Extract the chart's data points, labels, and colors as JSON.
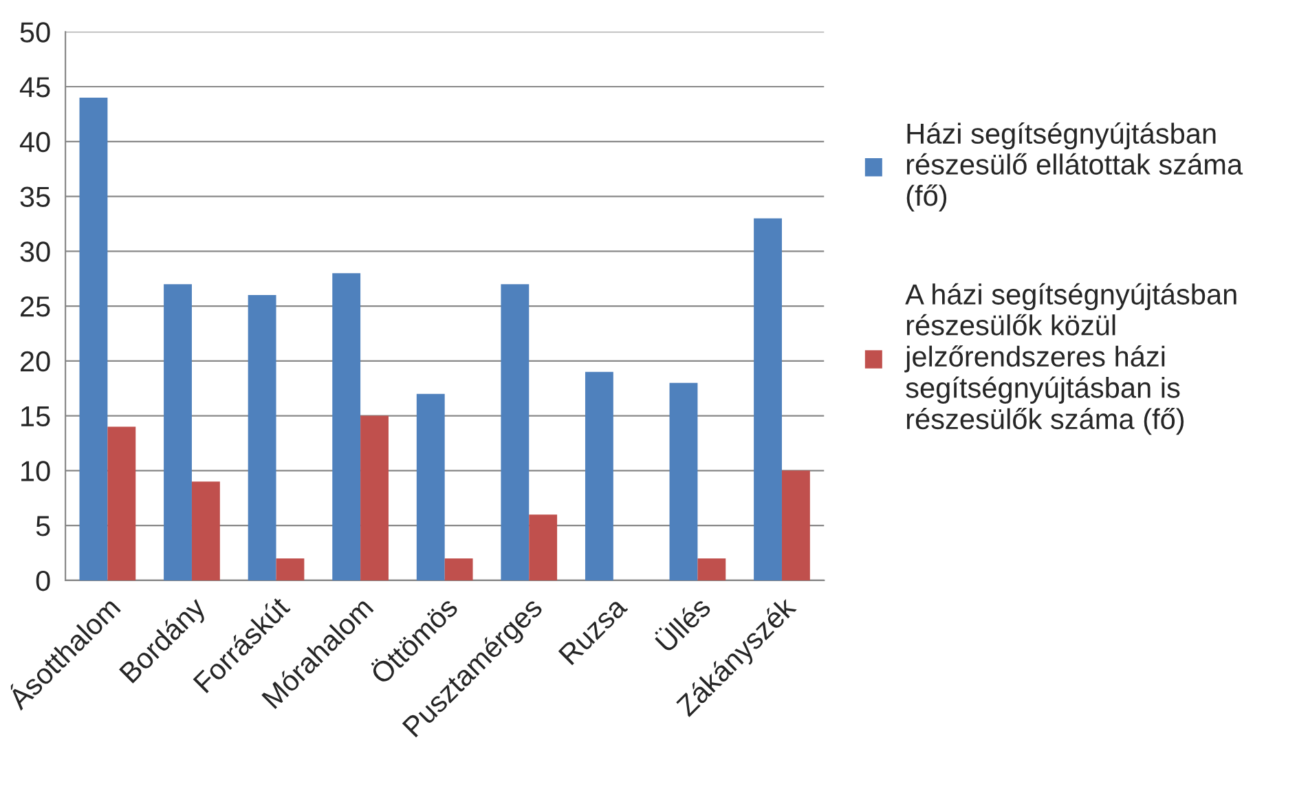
{
  "chart_data": {
    "type": "bar",
    "categories": [
      "Ásotthalom",
      "Bordány",
      "Forráskút",
      "Mórahalom",
      "Öttömös",
      "Pusztamérges",
      "Ruzsa",
      "Üllés",
      "Zákányszék"
    ],
    "series": [
      {
        "name": "Házi segítségnyújtásban részesülő ellátottak száma (fő)",
        "color": "#4f81bd",
        "values": [
          44,
          27,
          26,
          28,
          17,
          27,
          19,
          18,
          33
        ]
      },
      {
        "name": "A házi segítségnyújtásban részesülők közül jelzőrendszeres házi segítségnyújtásban is részesülők száma (fő)",
        "color": "#c0504d",
        "values": [
          14,
          9,
          2,
          15,
          2,
          6,
          null,
          2,
          10
        ]
      }
    ],
    "ylim": [
      0,
      50
    ],
    "yticks": [
      0,
      5,
      10,
      15,
      20,
      25,
      30,
      35,
      40,
      45,
      50
    ],
    "grid": "y",
    "legend": "right"
  }
}
